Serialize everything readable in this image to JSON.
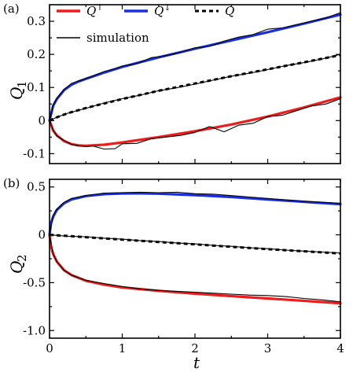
{
  "chart_data": [
    {
      "panel": "(a)",
      "type": "line",
      "xlabel": "",
      "ylabel": "Q",
      "ylabel_sub": "1",
      "xlim": [
        0,
        4
      ],
      "ylim": [
        -0.13,
        0.35
      ],
      "xticks": [
        "0",
        "1",
        "2",
        "3",
        "4"
      ],
      "yticks": [
        "-0.1",
        "0",
        "0.1",
        "0.2",
        "0.3"
      ],
      "ytick_values": [
        -0.1,
        0,
        0.1,
        0.2,
        0.3
      ],
      "grid": false,
      "legend": {
        "placement": "top",
        "entries": [
          {
            "label": "Q",
            "sup": "↑",
            "style": "solid",
            "color": "#ee1c1c"
          },
          {
            "label": "Q",
            "sup": "↓",
            "style": "solid",
            "color": "#1a2fe0"
          },
          {
            "label": "Q",
            "sup": "",
            "style": "dashed",
            "color": "#000000"
          },
          {
            "label": "simulation",
            "sup": "",
            "style": "thin",
            "color": "#000000"
          }
        ]
      },
      "series": [
        {
          "name": "Q↑",
          "color": "#ee1c1c",
          "style": "solid",
          "x": [
            0,
            0.05,
            0.1,
            0.2,
            0.3,
            0.4,
            0.5,
            0.75,
            1,
            1.5,
            2,
            2.5,
            3,
            3.5,
            4
          ],
          "y": [
            0,
            -0.03,
            -0.045,
            -0.062,
            -0.071,
            -0.075,
            -0.076,
            -0.073,
            -0.066,
            -0.05,
            -0.032,
            -0.012,
            0.012,
            0.04,
            0.07
          ]
        },
        {
          "name": "Q↓",
          "color": "#1a2fe0",
          "style": "solid",
          "x": [
            0,
            0.05,
            0.1,
            0.2,
            0.3,
            0.4,
            0.5,
            0.75,
            1,
            1.5,
            2,
            2.5,
            3,
            3.5,
            4
          ],
          "y": [
            0,
            0.045,
            0.065,
            0.092,
            0.108,
            0.118,
            0.126,
            0.145,
            0.162,
            0.191,
            0.217,
            0.242,
            0.267,
            0.293,
            0.32
          ]
        },
        {
          "name": "Q",
          "color": "#000000",
          "style": "dashed",
          "x": [
            0,
            0.1,
            0.25,
            0.5,
            1,
            1.5,
            2,
            2.5,
            3,
            3.5,
            4
          ],
          "y": [
            0,
            0.01,
            0.022,
            0.038,
            0.065,
            0.09,
            0.112,
            0.134,
            0.155,
            0.176,
            0.198
          ]
        },
        {
          "name": "simulation",
          "color": "#000000",
          "style": "thin",
          "x": [
            0,
            0.05,
            0.1,
            0.2,
            0.3,
            0.4,
            0.5,
            0.6,
            0.75,
            0.9,
            1,
            1.2,
            1.4,
            1.6,
            1.8,
            2,
            2.2,
            2.4,
            2.6,
            2.8,
            3,
            3.2,
            3.4,
            3.6,
            3.8,
            4
          ],
          "y": [
            0,
            -0.028,
            -0.046,
            -0.06,
            -0.072,
            -0.076,
            -0.079,
            -0.077,
            -0.086,
            -0.085,
            -0.07,
            -0.069,
            -0.055,
            -0.05,
            -0.045,
            -0.036,
            -0.018,
            -0.034,
            -0.014,
            -0.008,
            0.012,
            0.016,
            0.03,
            0.044,
            0.05,
            0.066
          ]
        },
        {
          "name": "simulation",
          "color": "#000000",
          "style": "thin",
          "x": [
            0,
            0.05,
            0.1,
            0.2,
            0.3,
            0.4,
            0.5,
            0.6,
            0.75,
            0.9,
            1,
            1.2,
            1.4,
            1.6,
            1.8,
            2,
            2.2,
            2.4,
            2.6,
            2.8,
            3,
            3.2,
            3.4,
            3.6,
            3.8,
            4
          ],
          "y": [
            0,
            0.046,
            0.067,
            0.094,
            0.112,
            0.12,
            0.127,
            0.135,
            0.148,
            0.157,
            0.165,
            0.172,
            0.19,
            0.196,
            0.206,
            0.22,
            0.224,
            0.24,
            0.252,
            0.26,
            0.276,
            0.28,
            0.29,
            0.3,
            0.31,
            0.326
          ]
        },
        {
          "name": "simulation",
          "color": "#000000",
          "style": "thin",
          "x": [
            0,
            0.1,
            0.25,
            0.5,
            0.75,
            1,
            1.25,
            1.5,
            1.75,
            2,
            2.25,
            2.5,
            2.75,
            3,
            3.25,
            3.5,
            3.75,
            4
          ],
          "y": [
            0,
            0.01,
            0.022,
            0.037,
            0.053,
            0.066,
            0.077,
            0.09,
            0.099,
            0.11,
            0.122,
            0.134,
            0.143,
            0.154,
            0.166,
            0.175,
            0.186,
            0.2
          ]
        }
      ]
    },
    {
      "panel": "(b)",
      "type": "line",
      "xlabel": "t",
      "ylabel": "Q",
      "ylabel_sub": "2",
      "xlim": [
        0,
        4
      ],
      "ylim": [
        -1.08,
        0.58
      ],
      "xticks": [
        "0",
        "1",
        "2",
        "3",
        "4"
      ],
      "yticks": [
        "-1.0",
        "-0.5",
        "0",
        "0.5"
      ],
      "ytick_values": [
        -1.0,
        -0.5,
        0,
        0.5
      ],
      "grid": false,
      "series": [
        {
          "name": "Q↑",
          "color": "#ee1c1c",
          "style": "solid",
          "x": [
            0,
            0.02,
            0.05,
            0.1,
            0.2,
            0.3,
            0.5,
            0.75,
            1,
            1.5,
            2,
            2.5,
            3,
            3.5,
            4
          ],
          "y": [
            0,
            -0.12,
            -0.2,
            -0.28,
            -0.37,
            -0.42,
            -0.48,
            -0.52,
            -0.55,
            -0.585,
            -0.615,
            -0.64,
            -0.665,
            -0.69,
            -0.715
          ]
        },
        {
          "name": "Q↓",
          "color": "#1a2fe0",
          "style": "solid",
          "x": [
            0,
            0.02,
            0.05,
            0.1,
            0.2,
            0.3,
            0.5,
            0.75,
            1,
            1.25,
            1.5,
            2,
            2.5,
            3,
            3.5,
            4
          ],
          "y": [
            0,
            0.12,
            0.19,
            0.26,
            0.33,
            0.37,
            0.405,
            0.425,
            0.432,
            0.433,
            0.43,
            0.415,
            0.395,
            0.37,
            0.345,
            0.32
          ]
        },
        {
          "name": "Q",
          "color": "#000000",
          "style": "dashed",
          "x": [
            0,
            0.25,
            0.5,
            1,
            1.5,
            2,
            2.5,
            3,
            3.5,
            4
          ],
          "y": [
            0,
            -0.012,
            -0.025,
            -0.05,
            -0.075,
            -0.1,
            -0.125,
            -0.15,
            -0.172,
            -0.195
          ]
        },
        {
          "name": "simulation",
          "color": "#000000",
          "style": "thin",
          "x": [
            0,
            0.05,
            0.1,
            0.2,
            0.3,
            0.5,
            0.75,
            1,
            1.25,
            1.5,
            1.75,
            2,
            2.25,
            2.5,
            2.75,
            3,
            3.25,
            3.5,
            3.75,
            4
          ],
          "y": [
            0,
            0.2,
            0.27,
            0.34,
            0.38,
            0.41,
            0.435,
            0.44,
            0.445,
            0.44,
            0.445,
            0.43,
            0.425,
            0.41,
            0.395,
            0.38,
            0.365,
            0.35,
            0.34,
            0.33
          ]
        },
        {
          "name": "simulation",
          "color": "#000000",
          "style": "thin",
          "x": [
            0,
            0.05,
            0.1,
            0.2,
            0.3,
            0.5,
            0.75,
            1,
            1.25,
            1.5,
            1.75,
            2,
            2.25,
            2.5,
            2.75,
            3,
            3.25,
            3.5,
            3.75,
            4
          ],
          "y": [
            0,
            -0.2,
            -0.28,
            -0.37,
            -0.42,
            -0.475,
            -0.51,
            -0.54,
            -0.565,
            -0.58,
            -0.59,
            -0.6,
            -0.61,
            -0.62,
            -0.63,
            -0.635,
            -0.645,
            -0.665,
            -0.68,
            -0.7
          ]
        },
        {
          "name": "simulation",
          "color": "#000000",
          "style": "thin",
          "x": [
            0,
            0.25,
            0.5,
            0.75,
            1,
            1.25,
            1.5,
            1.75,
            2,
            2.25,
            2.5,
            2.75,
            3,
            3.25,
            3.5,
            3.75,
            4
          ],
          "y": [
            0,
            -0.015,
            -0.02,
            -0.035,
            -0.045,
            -0.06,
            -0.07,
            -0.085,
            -0.095,
            -0.11,
            -0.12,
            -0.135,
            -0.145,
            -0.16,
            -0.17,
            -0.18,
            -0.19
          ]
        }
      ]
    }
  ]
}
